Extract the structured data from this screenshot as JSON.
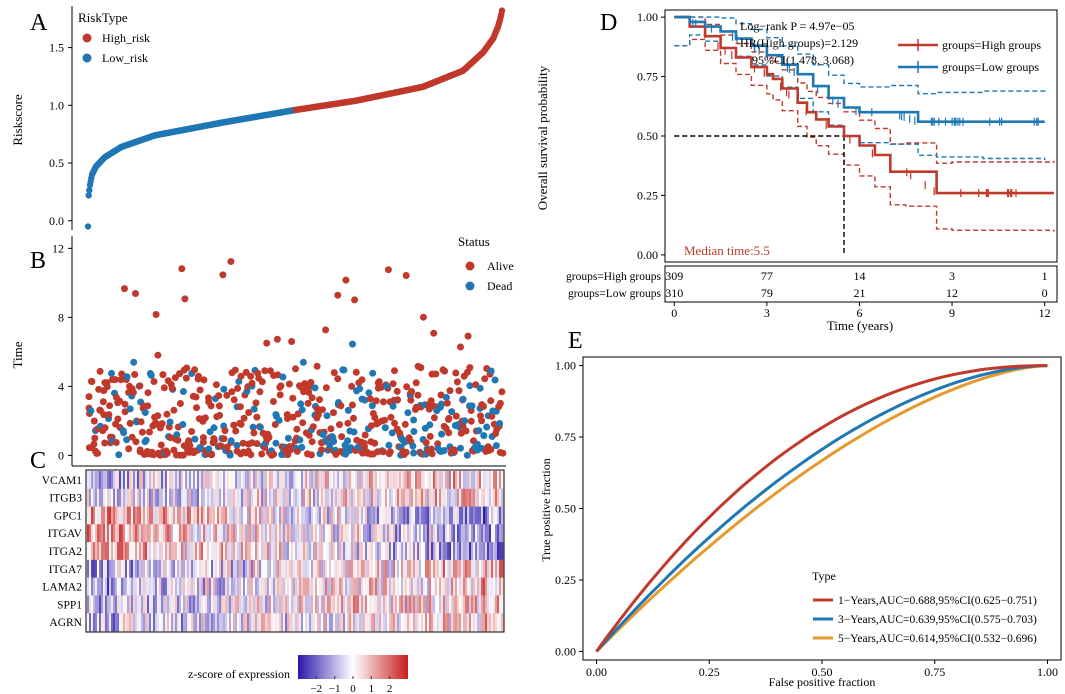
{
  "colors": {
    "high": "#c0392b",
    "low": "#1f77b4",
    "orange": "#e69a2e",
    "black": "#000000",
    "heat_low": "#2b18a8",
    "heat_mid": "#ffffff",
    "heat_high": "#c81e1e"
  },
  "chart_data": [
    {
      "panel": "A",
      "type": "scatter",
      "ylabel": "Riskscore",
      "yticks": [
        "0.0",
        "0.5",
        "1.0",
        "1.5"
      ],
      "ylim": [
        -0.08,
        1.86
      ],
      "legend_title": "RiskType",
      "legend": [
        "High_risk",
        "Low_risk"
      ],
      "n_points": 619,
      "n_low": 310,
      "curve_knots": {
        "rank": [
          0,
          1,
          3,
          6,
          12,
          25,
          50,
          100,
          200,
          310,
          400,
          500,
          560,
          590,
          605,
          612,
          615,
          617,
          618
        ],
        "risk": [
          -0.05,
          0.22,
          0.31,
          0.4,
          0.47,
          0.55,
          0.64,
          0.74,
          0.85,
          0.96,
          1.04,
          1.16,
          1.3,
          1.46,
          1.58,
          1.68,
          1.74,
          1.79,
          1.82
        ]
      }
    },
    {
      "panel": "B",
      "type": "scatter",
      "ylabel": "Time",
      "yticks": [
        "0",
        "4",
        "8",
        "12"
      ],
      "ylim": [
        -0.5,
        12.6
      ],
      "legend_title": "Status",
      "legend": [
        "Alive",
        "Dead"
      ]
    },
    {
      "panel": "C",
      "type": "heatmap",
      "genes": [
        "VCAM1",
        "ITGB3",
        "GPC1",
        "ITGAV",
        "ITGA2",
        "ITGA7",
        "LAMA2",
        "SPP1",
        "AGRN"
      ],
      "colorbar_title": "z-score of expression",
      "colorbar_ticks": [
        "−2",
        "−1",
        "0",
        "1",
        "2"
      ],
      "colorbar_range": [
        -3,
        3
      ]
    },
    {
      "panel": "D",
      "type": "line",
      "xlabel": "Time (years)",
      "ylabel": "Overall survival probability",
      "xticks": [
        "0",
        "3",
        "6",
        "9",
        "12"
      ],
      "xlim": [
        -0.3,
        12.4
      ],
      "yticks": [
        "0.00",
        "0.25",
        "0.50",
        "0.75",
        "1.00"
      ],
      "ylim": [
        -0.03,
        1.03
      ],
      "annotations": [
        "Log−rank P = 4.97e−05",
        "HR(High groups)=2.129",
        "95%CI(1.478, 3.068)"
      ],
      "median_label": "Median time:5.5",
      "series": [
        {
          "name": "groups=High groups",
          "x": [
            0,
            0.5,
            1,
            1.5,
            2,
            2.5,
            3,
            3.2,
            3.5,
            4,
            4.3,
            4.6,
            5,
            5.5,
            6,
            6.5,
            7,
            7.5,
            8.5,
            9,
            12.3
          ],
          "y": [
            1,
            0.96,
            0.92,
            0.87,
            0.83,
            0.79,
            0.76,
            0.74,
            0.7,
            0.64,
            0.6,
            0.57,
            0.54,
            0.5,
            0.46,
            0.42,
            0.35,
            0.35,
            0.26,
            0.26,
            0.26
          ]
        },
        {
          "name": "groups=Low groups",
          "x": [
            0,
            0.5,
            1,
            1.5,
            2,
            2.5,
            3,
            3.5,
            4,
            4.5,
            5,
            5.5,
            6,
            7,
            7.9,
            8.5,
            10,
            12
          ],
          "y": [
            1,
            0.98,
            0.96,
            0.94,
            0.91,
            0.88,
            0.84,
            0.8,
            0.76,
            0.71,
            0.66,
            0.62,
            0.6,
            0.6,
            0.56,
            0.56,
            0.56,
            0.56
          ]
        }
      ],
      "risk_table": {
        "rows": [
          "groups=High groups",
          "groups=Low groups"
        ],
        "times": [
          0,
          3,
          6,
          9,
          12
        ],
        "counts": [
          [
            309,
            77,
            14,
            3,
            1
          ],
          [
            310,
            79,
            21,
            12,
            0
          ]
        ]
      }
    },
    {
      "panel": "E",
      "type": "line",
      "xlabel": "False positive fraction",
      "ylabel": "True positive fraction",
      "xticks": [
        "0.00",
        "0.25",
        "0.50",
        "0.75",
        "1.00"
      ],
      "xlim": [
        -0.03,
        1.03
      ],
      "yticks": [
        "0.00",
        "0.25",
        "0.50",
        "0.75",
        "1.00"
      ],
      "ylim": [
        -0.03,
        1.03
      ],
      "legend_title": "Type",
      "series": [
        {
          "name": "1−Years,AUC=0.688,95%CI(0.625−0.751)",
          "auc": 0.688
        },
        {
          "name": "3−Years,AUC=0.639,95%CI(0.575−0.703)",
          "auc": 0.639
        },
        {
          "name": "5−Years,AUC=0.614,95%CI(0.532−0.696)",
          "auc": 0.614
        }
      ]
    }
  ]
}
